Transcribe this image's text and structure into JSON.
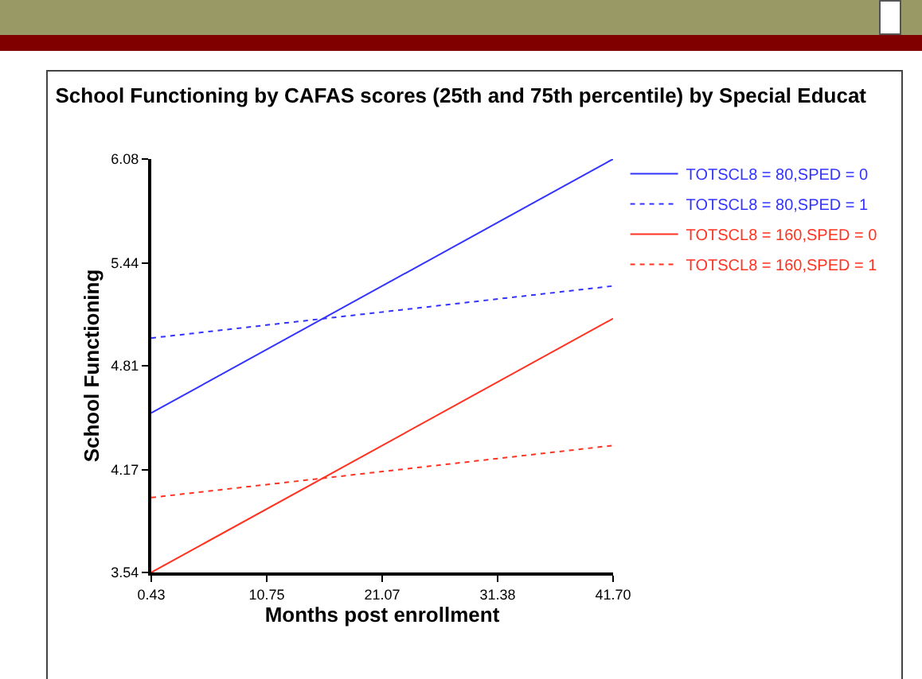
{
  "chart_data": {
    "type": "line",
    "title": "School Functioning by CAFAS scores (25th and 75th percentile) by Special Educat",
    "xlabel": "Months post enrollment",
    "ylabel": "School Functioning",
    "x": [
      0.43,
      41.7
    ],
    "series": [
      {
        "name": "TOTSCL8 = 80,SPED = 0",
        "color": "#3333ff",
        "values": [
          4.52,
          6.08
        ],
        "line_style": "solid"
      },
      {
        "name": "TOTSCL8 = 80,SPED = 1",
        "color": "#3333ff",
        "values": [
          4.98,
          5.3
        ],
        "line_style": "dotted"
      },
      {
        "name": "TOTSCL8 = 160,SPED = 0",
        "color": "#ff3322",
        "values": [
          3.54,
          5.1
        ],
        "line_style": "solid"
      },
      {
        "name": "TOTSCL8 = 160,SPED = 1",
        "color": "#ff3322",
        "values": [
          4.0,
          4.32
        ],
        "line_style": "dotted"
      }
    ],
    "xlim": [
      0.43,
      41.7
    ],
    "xticks": [
      {
        "value": 0.43,
        "label": "0.43"
      },
      {
        "value": 10.75,
        "label": "10.75"
      },
      {
        "value": 21.07,
        "label": "21.07"
      },
      {
        "value": 31.38,
        "label": "31.38"
      },
      {
        "value": 41.7,
        "label": "41.70"
      }
    ],
    "ylim": [
      3.54,
      6.08
    ],
    "yticks": [
      {
        "value": 3.54,
        "label": "3.54"
      },
      {
        "value": 4.17,
        "label": "4.17"
      },
      {
        "value": 4.81,
        "label": "4.81"
      },
      {
        "value": 5.44,
        "label": "5.44"
      },
      {
        "value": 6.08,
        "label": "6.08"
      }
    ],
    "grid": false,
    "legend": "top right",
    "marker": "none"
  }
}
